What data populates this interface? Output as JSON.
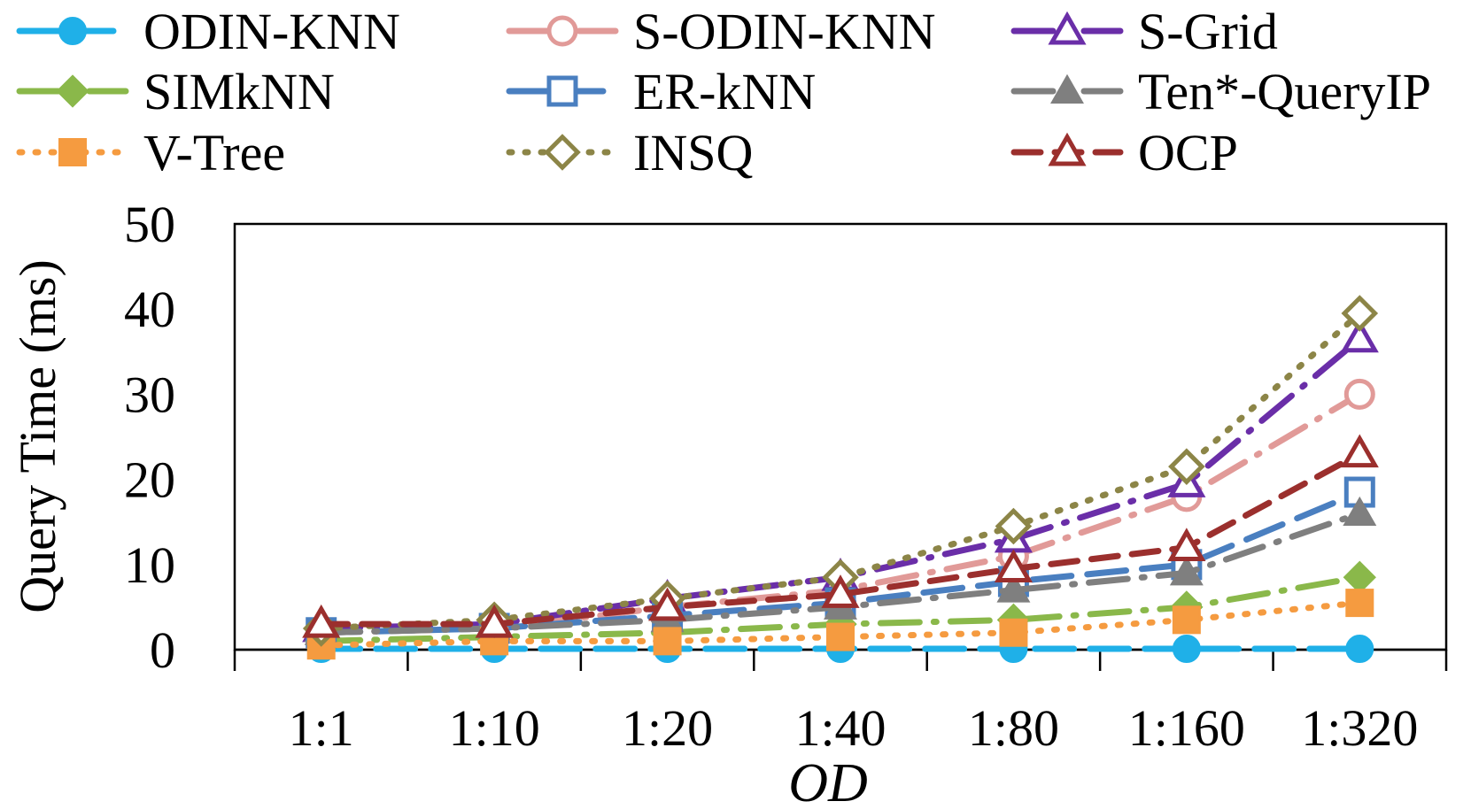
{
  "chart_data": {
    "type": "line",
    "title": "",
    "xlabel": "OD",
    "ylabel": "Query Time (ms)",
    "categories": [
      "1:1",
      "1:10",
      "1:20",
      "1:40",
      "1:80",
      "1:160",
      "1:320"
    ],
    "ylim": [
      0,
      50
    ],
    "yticks": [
      0,
      10,
      20,
      30,
      40,
      50
    ],
    "grid": false,
    "legend_position": "top",
    "series": [
      {
        "name": "ODIN-KNN",
        "color": "#1fb0e8",
        "dash": "long",
        "marker": "circle",
        "filled": true,
        "values": [
          0.1,
          0.1,
          0.1,
          0.1,
          0.1,
          0.1,
          0.1
        ]
      },
      {
        "name": "S-ODIN-KNN",
        "color": "#e19a98",
        "dash": "longdot",
        "marker": "circle",
        "filled": false,
        "values": [
          2.0,
          2.5,
          5.0,
          7.0,
          11.0,
          18.0,
          30.0
        ]
      },
      {
        "name": "S-Grid",
        "color": "#6a2ea8",
        "dash": "longdot",
        "marker": "triangle",
        "filled": false,
        "values": [
          2.5,
          3.0,
          6.0,
          8.5,
          13.0,
          19.5,
          36.5
        ]
      },
      {
        "name": "SIMkNN",
        "color": "#8ab84a",
        "dash": "longdot",
        "marker": "diamond",
        "filled": true,
        "values": [
          1.0,
          1.5,
          2.0,
          3.0,
          3.5,
          5.0,
          8.5
        ]
      },
      {
        "name": "ER-kNN",
        "color": "#4a7fc0",
        "dash": "long",
        "marker": "square",
        "filled": false,
        "values": [
          2.0,
          2.5,
          4.0,
          5.5,
          8.0,
          10.0,
          18.5
        ]
      },
      {
        "name": "Ten*-QueryIP",
        "color": "#7f7f7f",
        "dash": "longdot",
        "marker": "triangle",
        "filled": true,
        "values": [
          2.0,
          2.5,
          3.5,
          5.0,
          7.0,
          9.0,
          16.0
        ]
      },
      {
        "name": "V-Tree",
        "color": "#f59b40",
        "dash": "dot",
        "marker": "square",
        "filled": true,
        "values": [
          0.5,
          1.0,
          1.0,
          1.5,
          2.0,
          3.5,
          5.5
        ]
      },
      {
        "name": "INSQ",
        "color": "#8c8547",
        "dash": "dot",
        "marker": "diamond",
        "filled": false,
        "values": [
          2.5,
          3.5,
          6.0,
          8.5,
          14.5,
          21.5,
          39.5
        ]
      },
      {
        "name": "OCP",
        "color": "#9b2f2d",
        "dash": "medium",
        "marker": "triangle",
        "filled": false,
        "values": [
          3.0,
          3.0,
          5.0,
          6.5,
          9.5,
          12.0,
          23.0
        ]
      }
    ]
  }
}
